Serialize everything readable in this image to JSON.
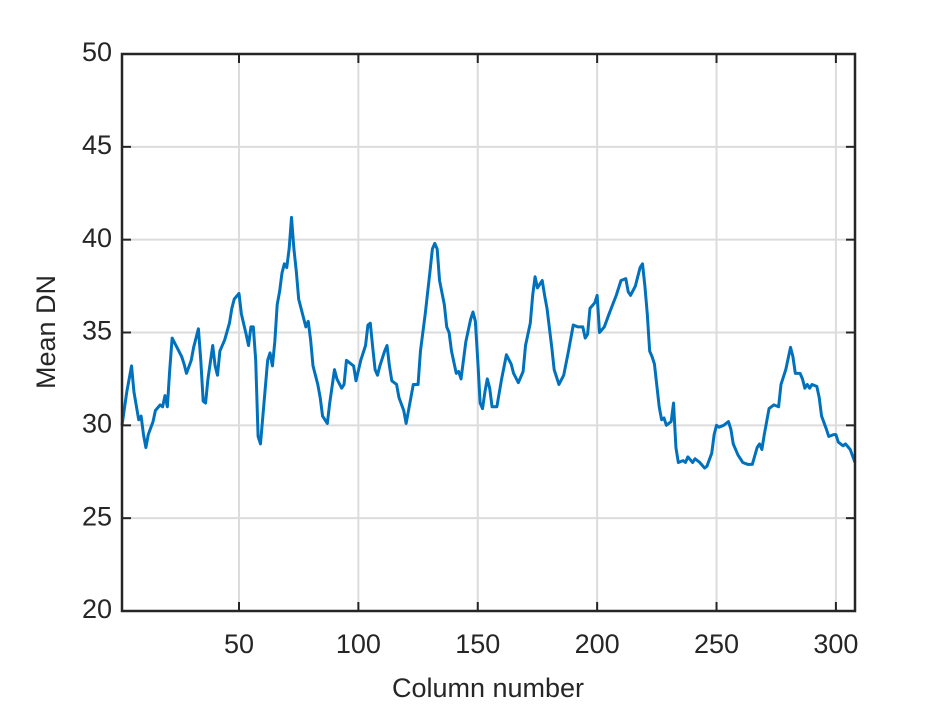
{
  "chart_data": {
    "type": "line",
    "xlabel": "Column number",
    "ylabel": "Mean DN",
    "x": [
      1,
      3,
      5,
      6,
      8,
      9,
      10,
      11,
      12,
      14,
      15,
      17,
      18,
      19,
      20,
      21,
      22,
      24,
      26,
      27,
      28,
      30,
      31,
      33,
      34,
      35,
      36,
      37,
      39,
      40,
      41,
      42,
      44,
      46,
      47,
      48,
      50,
      51,
      53,
      54,
      55,
      56,
      57,
      58,
      59,
      60,
      62,
      63,
      64,
      65,
      66,
      67,
      68,
      69,
      70,
      71,
      72,
      73,
      74,
      75,
      77,
      78,
      79,
      80,
      81,
      83,
      84,
      85,
      87,
      88,
      90,
      91,
      93,
      94,
      95,
      97,
      98,
      99,
      101,
      103,
      104,
      105,
      106,
      107,
      108,
      109,
      111,
      112,
      113,
      114,
      116,
      117,
      119,
      120,
      121,
      123,
      125,
      126,
      128,
      130,
      131,
      132,
      133,
      134,
      136,
      137,
      138,
      139,
      141,
      142,
      143,
      145,
      147,
      148,
      149,
      150,
      151,
      152,
      153,
      154,
      155,
      156,
      158,
      160,
      162,
      164,
      165,
      167,
      169,
      170,
      172,
      173,
      174,
      175,
      177,
      178,
      179,
      181,
      182,
      184,
      186,
      188,
      190,
      192,
      194,
      195,
      196,
      197,
      199,
      200,
      201,
      203,
      205,
      208,
      210,
      212,
      213,
      214,
      216,
      218,
      219,
      220,
      221,
      222,
      223,
      224,
      226,
      227,
      228,
      229,
      231,
      232,
      233,
      234,
      236,
      237,
      238,
      240,
      241,
      243,
      245,
      246,
      248,
      249,
      250,
      251,
      253,
      255,
      256,
      257,
      259,
      261,
      263,
      265,
      267,
      268,
      269,
      270,
      271,
      272,
      274,
      276,
      277,
      279,
      281,
      282,
      283,
      285,
      286,
      287,
      288,
      289,
      290,
      292,
      293,
      294,
      296,
      297,
      299,
      300,
      301,
      303,
      304,
      306,
      308
    ],
    "series": [
      {
        "name": "Mean DN",
        "color": "#0072bd",
        "values": [
          30.0,
          31.8,
          33.2,
          31.8,
          30.3,
          30.5,
          29.5,
          28.8,
          29.5,
          30.2,
          30.8,
          31.1,
          31.0,
          31.6,
          31.0,
          33.0,
          34.7,
          34.2,
          33.7,
          33.3,
          32.8,
          33.5,
          34.2,
          35.2,
          33.5,
          31.3,
          31.2,
          32.5,
          34.3,
          33.2,
          32.7,
          34.0,
          34.6,
          35.5,
          36.3,
          36.8,
          37.1,
          36.0,
          34.9,
          34.3,
          35.3,
          35.3,
          33.5,
          29.4,
          29.0,
          30.5,
          33.5,
          33.9,
          33.2,
          34.5,
          36.5,
          37.2,
          38.2,
          38.7,
          38.5,
          39.5,
          41.2,
          39.5,
          38.3,
          36.8,
          35.8,
          35.3,
          35.6,
          34.6,
          33.2,
          32.2,
          31.5,
          30.5,
          30.1,
          31.2,
          33.0,
          32.5,
          32.0,
          32.2,
          33.5,
          33.3,
          33.2,
          32.4,
          33.5,
          34.3,
          35.4,
          35.5,
          34.2,
          33.0,
          32.7,
          33.2,
          34.0,
          34.3,
          33.2,
          32.4,
          32.2,
          31.5,
          30.8,
          30.1,
          30.8,
          32.2,
          32.2,
          34.0,
          36.0,
          38.3,
          39.5,
          39.8,
          39.5,
          37.8,
          36.5,
          35.3,
          35.0,
          34.0,
          32.8,
          32.9,
          32.5,
          34.5,
          35.7,
          36.1,
          35.6,
          33.5,
          31.2,
          30.9,
          31.8,
          32.5,
          32.0,
          31.0,
          31.0,
          32.5,
          33.8,
          33.3,
          32.8,
          32.3,
          32.9,
          34.3,
          35.5,
          37.0,
          38.0,
          37.4,
          37.8,
          37.0,
          36.3,
          34.2,
          33.0,
          32.2,
          32.7,
          34.0,
          35.4,
          35.3,
          35.3,
          34.7,
          34.9,
          36.3,
          36.6,
          37.0,
          35.0,
          35.3,
          36.0,
          37.0,
          37.8,
          37.9,
          37.2,
          37.0,
          37.5,
          38.5,
          38.7,
          37.5,
          36.0,
          34.0,
          33.7,
          33.3,
          31.0,
          30.3,
          30.4,
          30.0,
          30.2,
          31.2,
          28.8,
          28.0,
          28.1,
          28.0,
          28.3,
          28.0,
          28.2,
          28.0,
          27.7,
          27.8,
          28.5,
          29.5,
          30.0,
          29.9,
          30.0,
          30.2,
          29.8,
          29.0,
          28.4,
          28.0,
          27.9,
          27.9,
          28.8,
          29.0,
          28.7,
          29.5,
          30.2,
          30.9,
          31.1,
          31.0,
          32.2,
          33.0,
          34.2,
          33.7,
          32.8,
          32.8,
          32.5,
          32.0,
          32.2,
          32.0,
          32.2,
          32.1,
          31.5,
          30.5,
          29.8,
          29.4,
          29.5,
          29.5,
          29.1,
          28.9,
          29.0,
          28.7,
          28.0
        ]
      }
    ],
    "xlim": [
      1,
      308
    ],
    "ylim": [
      20,
      50
    ],
    "xticks": [
      50,
      100,
      150,
      200,
      250,
      300
    ],
    "yticks": [
      20,
      25,
      30,
      35,
      40,
      45,
      50
    ],
    "grid": true
  }
}
